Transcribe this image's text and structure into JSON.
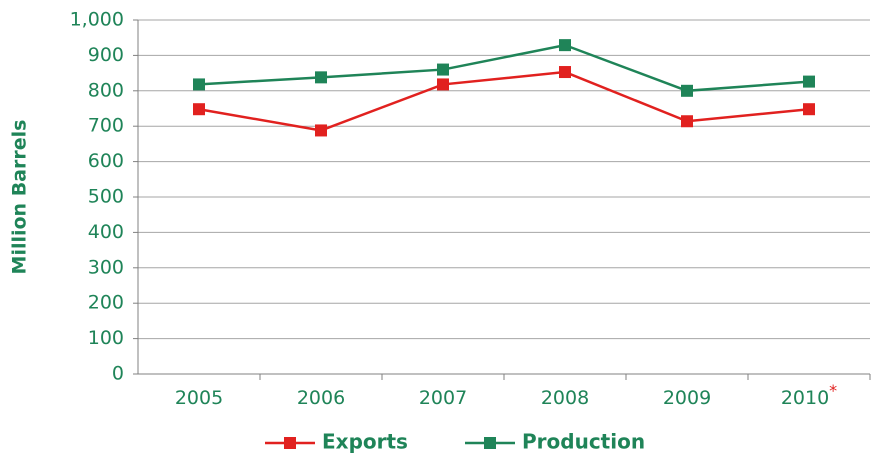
{
  "chart_data": {
    "type": "line",
    "y_axis_label": "Million Barrels",
    "categories": [
      "2005",
      "2006",
      "2007",
      "2008",
      "2009",
      "2010"
    ],
    "category_marks": [
      null,
      null,
      null,
      null,
      null,
      "*"
    ],
    "series": [
      {
        "name": "Exports",
        "color": "#e1211f",
        "values": [
          748,
          688,
          818,
          853,
          714,
          748
        ]
      },
      {
        "name": "Production",
        "color": "#1f8458",
        "values": [
          818,
          838,
          860,
          929,
          800,
          826
        ]
      }
    ],
    "ylim": [
      0,
      1000
    ],
    "yticks": [
      0,
      100,
      200,
      300,
      400,
      500,
      600,
      700,
      800,
      900,
      {
        "value": 1000,
        "label": "1,000"
      }
    ],
    "grid": true,
    "legend": "bottom"
  }
}
